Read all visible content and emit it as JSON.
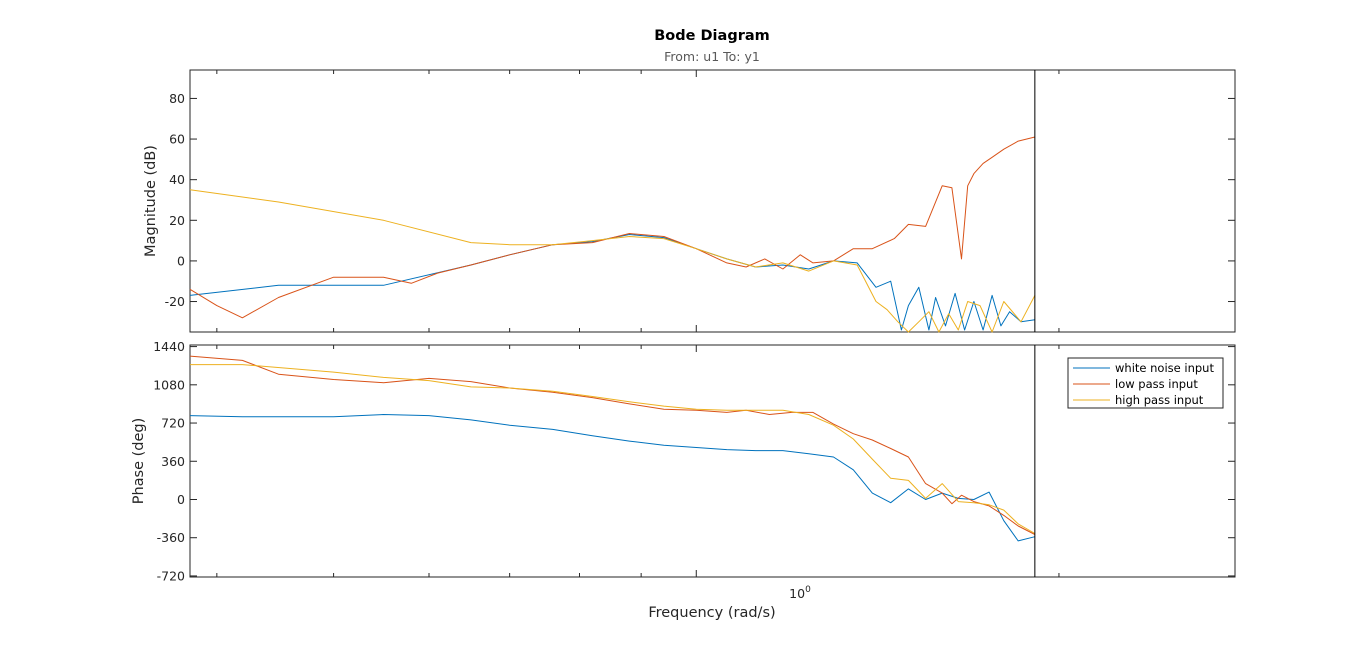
{
  "chart_data": {
    "type": "line",
    "title": "Bode Diagram",
    "subtitle": "From: u1  To: y1",
    "xlabel": "Frequency  (rad/s)",
    "xscale": "log",
    "xlim": [
      0.38,
      2.8
    ],
    "xticks": [
      {
        "value": 1,
        "label_base": "10",
        "label_exp": "0"
      }
    ],
    "vertical_marker_x": 1.91,
    "grid": false,
    "legend": {
      "position": "top-right",
      "entries": [
        "white noise input",
        "low pass input",
        "high pass input"
      ]
    },
    "colors": {
      "white noise input": "#0072bd",
      "low pass input": "#d95319",
      "high pass input": "#edb120"
    },
    "panels": [
      {
        "name": "magnitude",
        "ylabel": "Magnitude (dB)",
        "ylim": [
          -35,
          94
        ],
        "yticks": [
          -20,
          0,
          20,
          40,
          60,
          80
        ],
        "series": [
          {
            "name": "white noise input",
            "x": [
              0.38,
              0.45,
              0.55,
              0.65,
              0.7,
              0.76,
              0.82,
              0.88,
              0.94,
              1.0,
              1.06,
              1.12,
              1.18,
              1.24,
              1.3,
              1.36,
              1.41,
              1.45,
              1.48,
              1.5,
              1.53,
              1.56,
              1.58,
              1.61,
              1.64,
              1.67,
              1.7,
              1.73,
              1.76,
              1.79,
              1.82,
              1.86,
              1.91
            ],
            "values": [
              -17,
              -12,
              -12,
              -2,
              3,
              8,
              9.5,
              13,
              11.5,
              6,
              1,
              -3,
              -2,
              -4,
              0,
              -1,
              -13,
              -10,
              -34,
              -22,
              -13,
              -34,
              -18,
              -32,
              -16,
              -34,
              -20,
              -34,
              -17,
              -32,
              -25,
              -30,
              -29
            ]
          },
          {
            "name": "low pass input",
            "x": [
              0.38,
              0.4,
              0.42,
              0.45,
              0.5,
              0.55,
              0.58,
              0.61,
              0.65,
              0.7,
              0.76,
              0.82,
              0.88,
              0.94,
              1.0,
              1.06,
              1.1,
              1.14,
              1.18,
              1.22,
              1.25,
              1.3,
              1.35,
              1.4,
              1.46,
              1.5,
              1.55,
              1.6,
              1.63,
              1.66,
              1.68,
              1.7,
              1.73,
              1.76,
              1.8,
              1.85,
              1.91
            ],
            "values": [
              -14,
              -22,
              -28,
              -18,
              -8,
              -8,
              -11,
              -6,
              -2,
              3,
              8,
              9,
              13.5,
              12,
              6,
              -1,
              -3,
              1,
              -4,
              3,
              -1,
              0,
              6,
              6,
              11,
              18,
              17,
              37,
              36,
              1,
              37,
              43,
              48,
              51,
              55,
              59,
              61
            ]
          },
          {
            "name": "high pass input",
            "x": [
              0.38,
              0.45,
              0.55,
              0.65,
              0.7,
              0.76,
              0.82,
              0.88,
              0.94,
              1.0,
              1.06,
              1.12,
              1.18,
              1.24,
              1.3,
              1.36,
              1.41,
              1.44,
              1.47,
              1.5,
              1.53,
              1.56,
              1.59,
              1.62,
              1.65,
              1.68,
              1.72,
              1.76,
              1.8,
              1.86,
              1.91
            ],
            "values": [
              35,
              29,
              20,
              9,
              8,
              8,
              10,
              12,
              11,
              6,
              1,
              -3,
              -1,
              -5,
              0,
              -2,
              -20,
              -24,
              -30,
              -35,
              -30,
              -25,
              -35,
              -26,
              -34,
              -20,
              -22,
              -35,
              -20,
              -30,
              -17
            ]
          }
        ]
      },
      {
        "name": "phase",
        "ylabel": "Phase (deg)",
        "ylim": [
          -730,
          1455
        ],
        "yticks": [
          -720,
          -360,
          0,
          360,
          720,
          1080,
          1440
        ],
        "series": [
          {
            "name": "white noise input",
            "x": [
              0.38,
              0.42,
              0.5,
              0.55,
              0.6,
              0.65,
              0.7,
              0.76,
              0.82,
              0.88,
              0.94,
              1.0,
              1.06,
              1.12,
              1.18,
              1.24,
              1.3,
              1.35,
              1.4,
              1.45,
              1.5,
              1.55,
              1.6,
              1.65,
              1.7,
              1.75,
              1.8,
              1.85,
              1.91
            ],
            "values": [
              790,
              780,
              780,
              800,
              790,
              750,
              700,
              660,
              600,
              550,
              510,
              490,
              470,
              460,
              460,
              430,
              400,
              280,
              60,
              -30,
              100,
              0,
              60,
              10,
              0,
              70,
              -200,
              -390,
              -350
            ]
          },
          {
            "name": "low pass input",
            "x": [
              0.38,
              0.42,
              0.45,
              0.5,
              0.55,
              0.6,
              0.65,
              0.7,
              0.76,
              0.82,
              0.88,
              0.94,
              1.0,
              1.06,
              1.1,
              1.15,
              1.2,
              1.25,
              1.3,
              1.35,
              1.4,
              1.45,
              1.5,
              1.55,
              1.6,
              1.63,
              1.66,
              1.7,
              1.75,
              1.8,
              1.85,
              1.91
            ],
            "values": [
              1350,
              1310,
              1180,
              1130,
              1100,
              1140,
              1110,
              1050,
              1010,
              960,
              900,
              850,
              840,
              820,
              840,
              800,
              820,
              820,
              710,
              620,
              560,
              480,
              400,
              150,
              60,
              -40,
              40,
              -20,
              -60,
              -150,
              -250,
              -330
            ]
          },
          {
            "name": "high pass input",
            "x": [
              0.38,
              0.42,
              0.5,
              0.55,
              0.6,
              0.65,
              0.7,
              0.76,
              0.82,
              0.88,
              0.94,
              1.0,
              1.06,
              1.12,
              1.18,
              1.24,
              1.3,
              1.35,
              1.4,
              1.45,
              1.5,
              1.55,
              1.6,
              1.65,
              1.7,
              1.75,
              1.8,
              1.85,
              1.91
            ],
            "values": [
              1270,
              1270,
              1200,
              1150,
              1120,
              1060,
              1050,
              1020,
              970,
              920,
              880,
              850,
              840,
              840,
              840,
              800,
              700,
              570,
              380,
              200,
              180,
              10,
              150,
              -20,
              -30,
              -50,
              -100,
              -230,
              -320
            ]
          }
        ]
      }
    ]
  }
}
